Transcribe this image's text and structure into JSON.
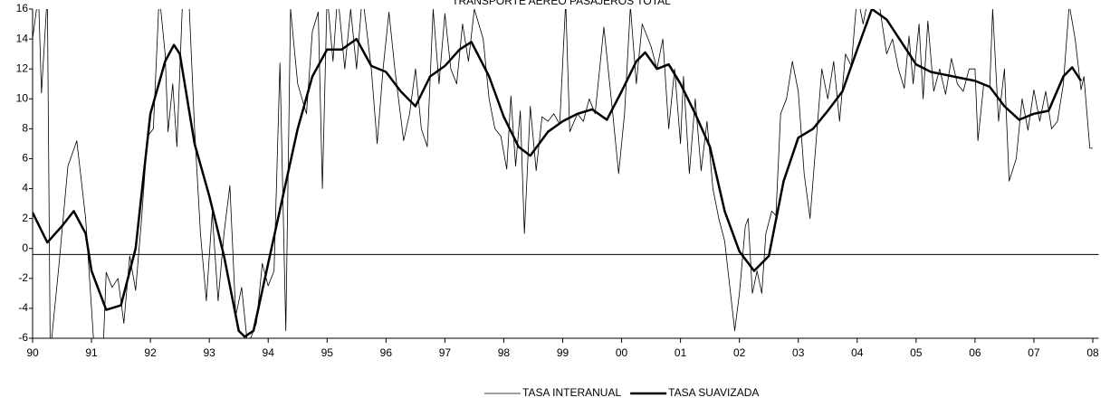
{
  "chart_data": {
    "type": "line",
    "title": "TRANSPORTE AEREO PASAJEROS TOTAL",
    "xlim": [
      1990,
      2008.1
    ],
    "ylim": [
      -6,
      16
    ],
    "yticks": [
      -6,
      -4,
      -2,
      0,
      2,
      4,
      6,
      8,
      10,
      12,
      14,
      16
    ],
    "xticks": [
      {
        "value": 1990,
        "label": "90"
      },
      {
        "value": 1991,
        "label": "91"
      },
      {
        "value": 1992,
        "label": "92"
      },
      {
        "value": 1993,
        "label": "93"
      },
      {
        "value": 1994,
        "label": "94"
      },
      {
        "value": 1995,
        "label": "95"
      },
      {
        "value": 1996,
        "label": "96"
      },
      {
        "value": 1997,
        "label": "97"
      },
      {
        "value": 1998,
        "label": "98"
      },
      {
        "value": 1999,
        "label": "99"
      },
      {
        "value": 2000,
        "label": "00"
      },
      {
        "value": 2001,
        "label": "01"
      },
      {
        "value": 2002,
        "label": "02"
      },
      {
        "value": 2003,
        "label": "03"
      },
      {
        "value": 2004,
        "label": "04"
      },
      {
        "value": 2005,
        "label": "05"
      },
      {
        "value": 2006,
        "label": "06"
      },
      {
        "value": 2007,
        "label": "07"
      },
      {
        "value": 2008,
        "label": "08"
      }
    ],
    "hline": -0.4,
    "legend": "bottom",
    "series": [
      {
        "name": "TASA INTERANUAL",
        "color": "#000000",
        "width": 0.8,
        "x": [
          1990.0,
          1990.1,
          1990.15,
          1990.25,
          1990.3,
          1990.45,
          1990.6,
          1990.75,
          1990.9,
          1991.05,
          1991.2,
          1991.25,
          1991.35,
          1991.45,
          1991.55,
          1991.65,
          1991.75,
          1991.85,
          1991.95,
          1992.05,
          1992.15,
          1992.25,
          1992.3,
          1992.38,
          1992.45,
          1992.55,
          1992.65,
          1992.75,
          1992.85,
          1992.95,
          1993.05,
          1993.15,
          1993.25,
          1993.35,
          1993.45,
          1993.55,
          1993.65,
          1993.8,
          1993.9,
          1994.0,
          1994.1,
          1994.2,
          1994.3,
          1994.38,
          1994.5,
          1994.65,
          1994.75,
          1994.85,
          1994.92,
          1995.0,
          1995.1,
          1995.18,
          1995.3,
          1995.4,
          1995.5,
          1995.6,
          1995.75,
          1995.85,
          1995.95,
          1996.05,
          1996.15,
          1996.3,
          1996.4,
          1996.5,
          1996.6,
          1996.7,
          1996.8,
          1996.9,
          1997.0,
          1997.1,
          1997.2,
          1997.3,
          1997.4,
          1997.5,
          1997.65,
          1997.75,
          1997.85,
          1997.95,
          1998.05,
          1998.12,
          1998.2,
          1998.28,
          1998.35,
          1998.45,
          1998.55,
          1998.65,
          1998.75,
          1998.85,
          1998.95,
          1999.05,
          1999.12,
          1999.25,
          1999.35,
          1999.45,
          1999.55,
          1999.7,
          1999.85,
          1999.95,
          2000.05,
          2000.15,
          2000.25,
          2000.35,
          2000.5,
          2000.6,
          2000.7,
          2000.8,
          2000.9,
          2001.0,
          2001.05,
          2001.15,
          2001.25,
          2001.35,
          2001.45,
          2001.55,
          2001.65,
          2001.75,
          2001.85,
          2001.92,
          2002.0,
          2002.1,
          2002.15,
          2002.22,
          2002.3,
          2002.38,
          2002.45,
          2002.55,
          2002.62,
          2002.7,
          2002.8,
          2002.9,
          2003.0,
          2003.1,
          2003.2,
          2003.3,
          2003.4,
          2003.5,
          2003.6,
          2003.7,
          2003.8,
          2003.9,
          2004.0,
          2004.1,
          2004.2,
          2004.35,
          2004.5,
          2004.6,
          2004.7,
          2004.8,
          2004.88,
          2004.95,
          2005.05,
          2005.12,
          2005.2,
          2005.3,
          2005.4,
          2005.5,
          2005.6,
          2005.7,
          2005.8,
          2005.9,
          2006.0,
          2006.05,
          2006.15,
          2006.25,
          2006.3,
          2006.4,
          2006.5,
          2006.58,
          2006.7,
          2006.8,
          2006.9,
          2007.0,
          2007.1,
          2007.2,
          2007.3,
          2007.4,
          2007.5,
          2007.6,
          2007.7,
          2007.8,
          2007.85,
          2007.95,
          2008.0
        ],
        "values": [
          14,
          17,
          10.4,
          17,
          -7,
          -1,
          5.5,
          7.2,
          2,
          -7,
          -6.5,
          -1.6,
          -2.6,
          -2,
          -5,
          -0.5,
          -2.8,
          2,
          7.5,
          8,
          17,
          13,
          7.8,
          11,
          6.8,
          17,
          17,
          8,
          1,
          -3.5,
          2.4,
          -3.5,
          1,
          4.2,
          -4.5,
          -2.6,
          -6.5,
          -5,
          -1,
          -2.5,
          -1.5,
          12.4,
          -5.5,
          16,
          11,
          9,
          14.5,
          15.8,
          4,
          17,
          12.5,
          17,
          12,
          16,
          12,
          17,
          12,
          7,
          12,
          15.8,
          12,
          7.2,
          9,
          12,
          8,
          6.8,
          16,
          11,
          15.7,
          12,
          11,
          15,
          12.5,
          16,
          14,
          10,
          8,
          7.5,
          5.3,
          10.2,
          5.5,
          9.2,
          1,
          9.5,
          5.2,
          8.8,
          8.5,
          9,
          8.3,
          16.5,
          7.8,
          9,
          8.5,
          10,
          9,
          14.8,
          9,
          5,
          9,
          16.2,
          11,
          15,
          13.5,
          12,
          14,
          8,
          12,
          7,
          11.5,
          5,
          10,
          5.2,
          8.5,
          4,
          2,
          0.5,
          -3,
          -5.5,
          -3,
          1.5,
          2,
          -3,
          -1.5,
          -3,
          1,
          2.5,
          2.2,
          9,
          10,
          12.5,
          10.5,
          5,
          2,
          7,
          12,
          10,
          12.5,
          8.5,
          13,
          12.2,
          17,
          15,
          17,
          17,
          13,
          14,
          12,
          10.7,
          14.2,
          11,
          15,
          10,
          15.2,
          10.5,
          12,
          10.3,
          12.7,
          11,
          10.5,
          12,
          12,
          7.2,
          11,
          10.8,
          16,
          8.5,
          12,
          4.5,
          6,
          10,
          7.9,
          10.6,
          8.5,
          10.5,
          8,
          8.5,
          11,
          16.3,
          14,
          10.6,
          11.5,
          6.7,
          6.7
        ]
      },
      {
        "name": "TASA SUAVIZADA",
        "color": "#000000",
        "width": 2.5,
        "x": [
          1990.0,
          1990.25,
          1990.5,
          1990.7,
          1990.9,
          1991.0,
          1991.25,
          1991.5,
          1991.75,
          1992.0,
          1992.25,
          1992.4,
          1992.5,
          1992.75,
          1993.0,
          1993.25,
          1993.5,
          1993.6,
          1993.75,
          1994.0,
          1994.25,
          1994.5,
          1994.75,
          1995.0,
          1995.25,
          1995.5,
          1995.75,
          1996.0,
          1996.25,
          1996.5,
          1996.75,
          1997.0,
          1997.25,
          1997.45,
          1997.75,
          1998.0,
          1998.25,
          1998.45,
          1998.75,
          1999.0,
          1999.25,
          1999.5,
          1999.75,
          2000.0,
          2000.25,
          2000.4,
          2000.6,
          2000.8,
          2001.0,
          2001.25,
          2001.5,
          2001.75,
          2002.0,
          2002.25,
          2002.5,
          2002.75,
          2003.0,
          2003.25,
          2003.5,
          2003.75,
          2004.0,
          2004.25,
          2004.5,
          2004.75,
          2005.0,
          2005.25,
          2005.5,
          2005.75,
          2006.0,
          2006.25,
          2006.5,
          2006.75,
          2007.0,
          2007.25,
          2007.5,
          2007.65,
          2007.8
        ],
        "values": [
          2.4,
          0.4,
          1.5,
          2.5,
          1.0,
          -1.5,
          -4.1,
          -3.8,
          0,
          9,
          12.5,
          13.6,
          13.0,
          7,
          3.5,
          -0.5,
          -5.5,
          -5.9,
          -5.5,
          -1,
          3.5,
          8,
          11.5,
          13.3,
          13.3,
          14,
          12.2,
          11.8,
          10.5,
          9.5,
          11.5,
          12.2,
          13.3,
          13.8,
          11.5,
          8.8,
          6.8,
          6.2,
          7.8,
          8.5,
          9,
          9.3,
          8.6,
          10.5,
          12.5,
          13.1,
          12,
          12.3,
          11,
          9,
          6.8,
          2.5,
          -0.2,
          -1.5,
          -0.5,
          4.5,
          7.4,
          8,
          9.2,
          10.5,
          13.3,
          16,
          15.3,
          13.8,
          12.3,
          11.8,
          11.6,
          11.4,
          11.2,
          10.8,
          9.5,
          8.6,
          9,
          9.2,
          11.5,
          12.1,
          11.2
        ]
      }
    ]
  }
}
